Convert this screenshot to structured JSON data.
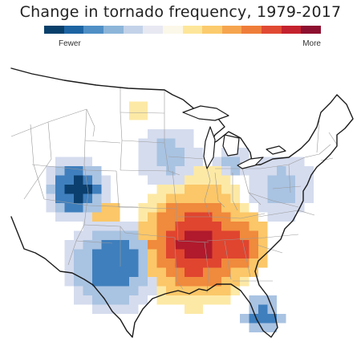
{
  "title": "Change in tornado frequency, 1979-2017",
  "legend": {
    "low_label": "Fewer",
    "high_label": "More",
    "colors": [
      "#08406b",
      "#1d64a3",
      "#4f8fc6",
      "#8cb5d9",
      "#c3d2e8",
      "#e7e8f2",
      "#fbf7e9",
      "#fde69a",
      "#fbcb6d",
      "#f6a54e",
      "#ef7d3a",
      "#e04a33",
      "#c4222e",
      "#8e1030"
    ]
  },
  "map": {
    "region": "contiguous United States",
    "grid_levels": {
      "scale": "-3 (fewest) to +3 (most) change in tornado frequency",
      "negative_areas": [
        {
          "area": "Wyoming/Colorado",
          "peak_level": -3
        },
        {
          "area": "Texas/New Mexico/Oklahoma panhandle",
          "peak_level": -2
        },
        {
          "area": "Florida peninsula",
          "peak_level": -2
        },
        {
          "area": "Upper Midwest",
          "peak_level": -1
        },
        {
          "area": "Northeast",
          "peak_level": -1
        }
      ],
      "positive_areas": [
        {
          "area": "Mississippi/Tennessee/Alabama",
          "peak_level": 3
        },
        {
          "area": "Missouri/Arkansas/Illinois",
          "peak_level": 3
        },
        {
          "area": "Kentucky/Indiana",
          "peak_level": 2
        },
        {
          "area": "Montana",
          "peak_level": 1
        }
      ]
    }
  }
}
